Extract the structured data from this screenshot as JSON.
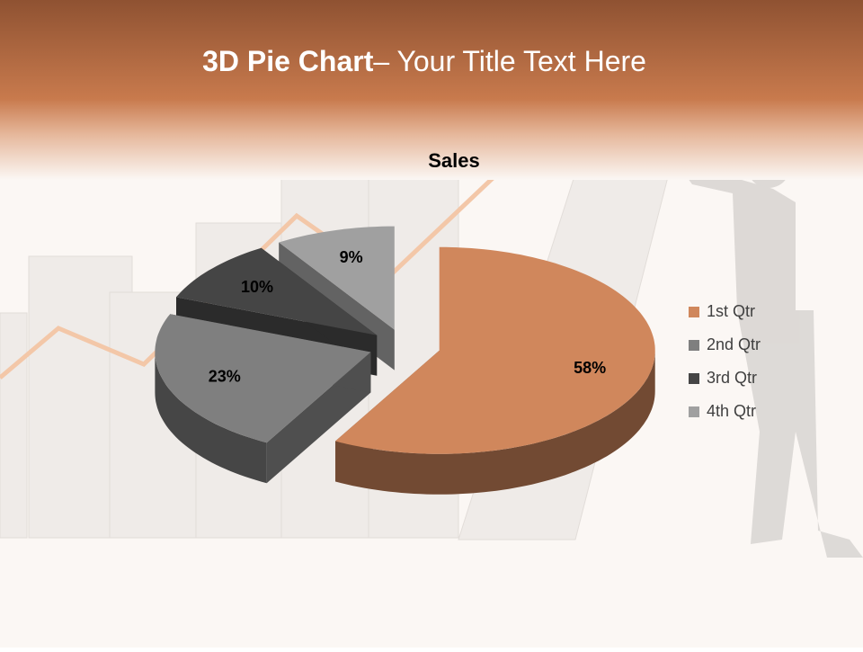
{
  "header": {
    "title_bold": "3D Pie Chart",
    "title_rest": "– Your Title Text Here"
  },
  "chart_data": {
    "type": "pie",
    "title": "Sales",
    "categories": [
      "1st Qtr",
      "2nd Qtr",
      "3rd Qtr",
      "4th Qtr"
    ],
    "values": [
      58,
      23,
      10,
      9
    ],
    "value_labels": [
      "58%",
      "23%",
      "10%",
      "9%"
    ],
    "colors": [
      "#d0875c",
      "#7f7f7f",
      "#454545",
      "#a0a0a0"
    ],
    "legend": "right"
  }
}
